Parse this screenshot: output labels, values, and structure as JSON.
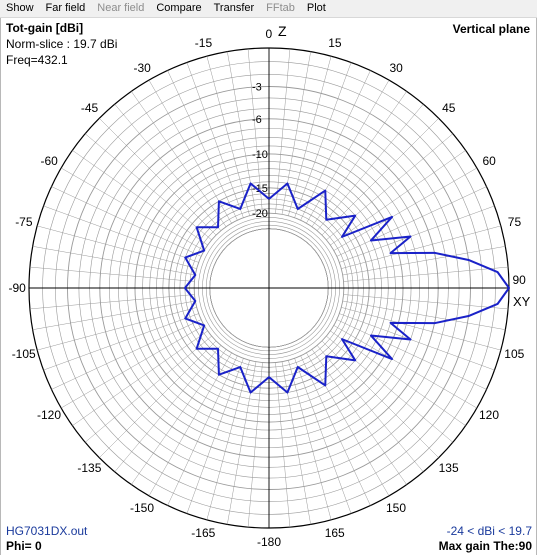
{
  "menu": [
    {
      "label": "Show",
      "enabled": true
    },
    {
      "label": "Far field",
      "enabled": true
    },
    {
      "label": "Near field",
      "enabled": false
    },
    {
      "label": "Compare",
      "enabled": true
    },
    {
      "label": "Transfer",
      "enabled": true
    },
    {
      "label": "FFtab",
      "enabled": false
    },
    {
      "label": "Plot",
      "enabled": true
    }
  ],
  "info": {
    "title": "Tot-gain [dBi]",
    "norm_slice": "Norm-slice : 19.7 dBi",
    "freq": "Freq=432.1",
    "plane": "Vertical plane",
    "filename": "HG7031DX.out",
    "range": "-24 < dBi < 19.7",
    "phi": "Phi= 0",
    "max_gain": "Max gain The:90"
  },
  "axes": {
    "z_label": "Z",
    "xy_label": "XY"
  },
  "colors": {
    "pattern": "#1a22c8",
    "grid": "#9a9a9a",
    "axis": "#000000"
  },
  "chart_data": {
    "type": "polar",
    "angle_labels": [
      "0",
      "15",
      "30",
      "45",
      "60",
      "75",
      "90",
      "105",
      "120",
      "135",
      "150",
      "165",
      "-180",
      "-165",
      "-150",
      "-135",
      "-120",
      "-105",
      "-90",
      "-75",
      "-60",
      "-45",
      "-30",
      "-15"
    ],
    "angle_values": [
      0,
      15,
      30,
      45,
      60,
      75,
      90,
      105,
      120,
      135,
      150,
      165,
      180,
      195,
      210,
      225,
      240,
      255,
      270,
      285,
      300,
      315,
      330,
      345
    ],
    "radial_labels": [
      "-3",
      "-6",
      "-10",
      "-15",
      "-20"
    ],
    "radial_values": [
      -3,
      -6,
      -10,
      -15,
      -20
    ],
    "radial_min": -24,
    "radial_max": 0,
    "max_gain_dbi": 19.7,
    "main_lobe_theta": 90,
    "pattern": [
      {
        "theta": 0,
        "gain": -17
      },
      {
        "theta": 10,
        "gain": -14
      },
      {
        "theta": 20,
        "gain": -18
      },
      {
        "theta": 30,
        "gain": -13
      },
      {
        "theta": 40,
        "gain": -17
      },
      {
        "theta": 50,
        "gain": -13
      },
      {
        "theta": 55,
        "gain": -17
      },
      {
        "theta": 60,
        "gain": -9
      },
      {
        "theta": 65,
        "gain": -13
      },
      {
        "theta": 70,
        "gain": -8
      },
      {
        "theta": 74,
        "gain": -11
      },
      {
        "theta": 78,
        "gain": -6
      },
      {
        "theta": 82,
        "gain": -3
      },
      {
        "theta": 86,
        "gain": -0.8
      },
      {
        "theta": 90,
        "gain": 0
      },
      {
        "theta": 94,
        "gain": -0.8
      },
      {
        "theta": 98,
        "gain": -3
      },
      {
        "theta": 102,
        "gain": -6
      },
      {
        "theta": 106,
        "gain": -11
      },
      {
        "theta": 110,
        "gain": -8
      },
      {
        "theta": 115,
        "gain": -13
      },
      {
        "theta": 120,
        "gain": -9
      },
      {
        "theta": 125,
        "gain": -17
      },
      {
        "theta": 130,
        "gain": -13
      },
      {
        "theta": 140,
        "gain": -17
      },
      {
        "theta": 150,
        "gain": -13
      },
      {
        "theta": 160,
        "gain": -18
      },
      {
        "theta": 170,
        "gain": -14
      },
      {
        "theta": 180,
        "gain": -17
      },
      {
        "theta": 190,
        "gain": -14
      },
      {
        "theta": 200,
        "gain": -18
      },
      {
        "theta": 210,
        "gain": -15
      },
      {
        "theta": 220,
        "gain": -19
      },
      {
        "theta": 230,
        "gain": -16
      },
      {
        "theta": 240,
        "gain": -20
      },
      {
        "theta": 250,
        "gain": -17
      },
      {
        "theta": 260,
        "gain": -20
      },
      {
        "theta": 270,
        "gain": -18
      },
      {
        "theta": 280,
        "gain": -20
      },
      {
        "theta": 290,
        "gain": -17
      },
      {
        "theta": 300,
        "gain": -20
      },
      {
        "theta": 310,
        "gain": -16
      },
      {
        "theta": 320,
        "gain": -19
      },
      {
        "theta": 330,
        "gain": -15
      },
      {
        "theta": 340,
        "gain": -18
      },
      {
        "theta": 350,
        "gain": -14
      },
      {
        "theta": 360,
        "gain": -17
      }
    ]
  }
}
